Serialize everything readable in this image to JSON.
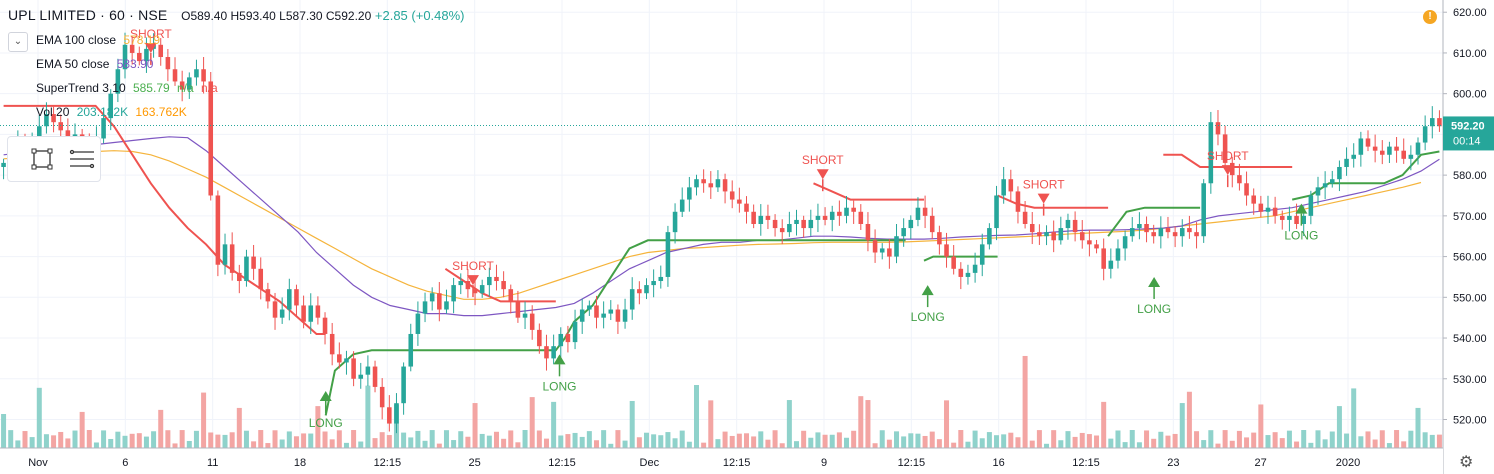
{
  "header": {
    "symbol": "UPL LIMITED · 60 · NSE",
    "ohlc": "O589.40 H593.40 L587.30 C592.20",
    "change": "+2.85 (+0.48%)"
  },
  "indicators": [
    {
      "name": "EMA 100 close",
      "values": [
        {
          "text": "578.19",
          "color": "#f5b43c"
        }
      ]
    },
    {
      "name": "EMA 50 close",
      "values": [
        {
          "text": "583.90",
          "color": "#7e57c2"
        }
      ]
    },
    {
      "name": "SuperTrend 3 10",
      "values": [
        {
          "text": "585.79",
          "color": "#4caf50"
        },
        {
          "text": "n/a",
          "color": "#4caf50"
        },
        {
          "text": "n/a",
          "color": "#ef5350"
        }
      ]
    },
    {
      "name": "Vol 20",
      "values": [
        {
          "text": "203.182K",
          "color": "#26a69a"
        },
        {
          "text": "163.762K",
          "color": "#ff9800"
        }
      ]
    }
  ],
  "icons": {
    "collapse": "chevron-down-icon",
    "rectangle_tool": "rectangle-select-icon",
    "lines_tool": "list-lines-icon",
    "alert": "alert-icon",
    "settings": "gear-icon"
  },
  "colors": {
    "up": "#26a69a",
    "down": "#ef5350",
    "ema100": "#f5b43c",
    "ema50": "#7e57c2",
    "st_long": "#43a047",
    "st_short": "#ef5350",
    "vol_up": "#8fd2cb",
    "vol_down": "#f3a5a3"
  },
  "chart_data": {
    "type": "candlestick",
    "title": "UPL LIMITED · 60 · NSE",
    "ylim": [
      513,
      623
    ],
    "y_ticks": [
      520,
      530,
      540,
      550,
      560,
      570,
      580,
      590,
      600,
      610,
      620
    ],
    "x_tick_labels": [
      "Nov",
      "6",
      "11",
      "18",
      "12:15",
      "25",
      "12:15",
      "Dec",
      "12:15",
      "9",
      "12:15",
      "16",
      "12:15",
      "23",
      "27",
      "2020"
    ],
    "last_price": "592.20",
    "countdown": "00:14",
    "candles_close": [
      583,
      584,
      588,
      587,
      589,
      592,
      595,
      593,
      591,
      589,
      590,
      588,
      586,
      589,
      594,
      600,
      606,
      612,
      610,
      608,
      611,
      612,
      609,
      606,
      603,
      601,
      604,
      606,
      603,
      575,
      558,
      563,
      556,
      554,
      560,
      557,
      552,
      549,
      545,
      547,
      552,
      548,
      544,
      548,
      545,
      541,
      536,
      534,
      535,
      530,
      531,
      533,
      528,
      523,
      519,
      524,
      533,
      541,
      546,
      549,
      551,
      547,
      549,
      553,
      554,
      552,
      551,
      553,
      555,
      554,
      552,
      549,
      545,
      546,
      542,
      538,
      535,
      538,
      541,
      539,
      544,
      547,
      548,
      545,
      546,
      547,
      544,
      547,
      552,
      551,
      553,
      554,
      555,
      566,
      571,
      574,
      577,
      579,
      578,
      577,
      579,
      576,
      574,
      573,
      571,
      568,
      570,
      569,
      567,
      566,
      568,
      569,
      567,
      569,
      570,
      569,
      571,
      570,
      572,
      571,
      568,
      564,
      561,
      562,
      560,
      565,
      567,
      569,
      572,
      570,
      566,
      563,
      560,
      557,
      555,
      556,
      558,
      563,
      567,
      575,
      579,
      576,
      571,
      568,
      566,
      565,
      566,
      564,
      567,
      569,
      566,
      564,
      563,
      562,
      557,
      559,
      562,
      565,
      567,
      568,
      566,
      565,
      567,
      566,
      565,
      567,
      566,
      565,
      578,
      593,
      590,
      583,
      580,
      578,
      575,
      573,
      571,
      572,
      570,
      569,
      570,
      568,
      570,
      575,
      577,
      578,
      579,
      582,
      584,
      585,
      589,
      587,
      586,
      585,
      587,
      586,
      584,
      585,
      588,
      592,
      594,
      592
    ],
    "ema50": [
      585,
      585.5,
      586,
      586.5,
      587,
      587.5,
      588,
      588.5,
      589,
      589.4,
      589.2,
      586,
      582,
      578,
      574,
      570,
      566,
      561,
      557,
      553,
      550,
      548,
      547,
      546,
      546,
      545.5,
      545.5,
      546,
      546.5,
      547,
      547.5,
      548.5,
      551,
      554,
      557,
      559,
      561,
      562,
      563,
      563.5,
      563.5,
      564,
      564,
      564.5,
      565,
      565,
      564.8,
      564.5,
      564.3,
      564.3,
      564.3,
      564.5,
      564.8,
      565,
      565.2,
      565.3,
      565.6,
      566,
      566.3,
      566.5,
      566.5,
      566.6,
      566.8,
      567,
      567.5,
      569,
      570,
      570.5,
      571,
      571.5,
      572,
      573,
      574,
      575,
      576,
      577.5,
      579,
      581,
      583.9
    ],
    "ema100": [
      584,
      584.3,
      584.6,
      585,
      585.4,
      585.8,
      586,
      585.8,
      585,
      583.5,
      581.5,
      579.5,
      577,
      574.5,
      572,
      569.5,
      567,
      564.5,
      562,
      559.5,
      557,
      555,
      553,
      551.5,
      550.5,
      549.5,
      549.5,
      550,
      551,
      552.5,
      554,
      555.5,
      557,
      558.5,
      560,
      561,
      561.5,
      562,
      562.2,
      562.5,
      562.8,
      563,
      563.1,
      563.2,
      563.4,
      563.5,
      563.5,
      563.5,
      563.5,
      563.6,
      563.8,
      564,
      564.2,
      564.4,
      564.6,
      564.8,
      565,
      565.3,
      565.6,
      565.8,
      566,
      566.2,
      566.5,
      567,
      567.5,
      568,
      568.5,
      569,
      569.5,
      570,
      571,
      572,
      573,
      574,
      575,
      576,
      577,
      578.19
    ],
    "supertrend_segments": [
      {
        "dir": "short",
        "x": [
          0,
          3,
          5,
          6,
          7,
          8,
          9,
          10,
          11,
          12,
          13,
          14,
          15,
          16,
          17,
          17.5
        ],
        "y": [
          597,
          597,
          597,
          592,
          585,
          578,
          572,
          567,
          563,
          558,
          555,
          552,
          549,
          545,
          541,
          541
        ]
      },
      {
        "dir": "long",
        "x": [
          17.5,
          18,
          19,
          20,
          21,
          22,
          23,
          24,
          25,
          26,
          27,
          28,
          29,
          30,
          30.5
        ],
        "y": [
          521,
          532,
          536,
          537,
          537,
          537,
          537,
          537,
          537,
          537,
          537,
          537,
          537,
          537,
          540
        ]
      },
      {
        "dir": "short",
        "x": [
          24,
          25,
          26,
          27,
          28,
          29,
          30
        ],
        "y": [
          557,
          554,
          551,
          549,
          549,
          549,
          549
        ]
      },
      {
        "dir": "long",
        "x": [
          30.5,
          31,
          32,
          33,
          34,
          35,
          36,
          37,
          38,
          39,
          40,
          41,
          42,
          43,
          44,
          45,
          46,
          47,
          48,
          49
        ],
        "y": [
          540,
          544,
          548,
          555,
          562,
          564,
          564,
          564,
          564,
          564,
          564,
          564,
          564,
          564,
          564,
          564,
          564,
          564,
          564,
          564
        ]
      },
      {
        "dir": "short",
        "x": [
          44,
          45,
          46,
          47,
          48,
          49,
          50
        ],
        "y": [
          578,
          576,
          574,
          574,
          574,
          574,
          574
        ]
      },
      {
        "dir": "long",
        "x": [
          50,
          50.5,
          51,
          52,
          53,
          54
        ],
        "y": [
          559,
          560,
          560,
          560,
          560,
          560
        ]
      },
      {
        "dir": "short",
        "x": [
          54,
          55,
          56,
          57,
          58,
          59,
          60
        ],
        "y": [
          575,
          573,
          572,
          572,
          572,
          572,
          572
        ]
      },
      {
        "dir": "long",
        "x": [
          60,
          61,
          62,
          63,
          64,
          65
        ],
        "y": [
          565,
          571,
          572,
          572,
          572,
          572
        ]
      },
      {
        "dir": "short",
        "x": [
          63,
          64,
          65,
          66,
          67,
          68,
          69,
          70
        ],
        "y": [
          585,
          585,
          582,
          582,
          582,
          582,
          582,
          582
        ]
      },
      {
        "dir": "long",
        "x": [
          70,
          71,
          72,
          73,
          74,
          75,
          76,
          77,
          78
        ],
        "y": [
          574,
          575,
          578,
          578,
          578,
          578,
          580,
          585,
          585.79
        ]
      }
    ],
    "signals": [
      {
        "type": "SHORT",
        "x": 8,
        "price": 610
      },
      {
        "type": "LONG",
        "x": 17.5,
        "price": 527
      },
      {
        "type": "SHORT",
        "x": 25.5,
        "price": 553
      },
      {
        "type": "LONG",
        "x": 30.2,
        "price": 536
      },
      {
        "type": "SHORT",
        "x": 44.5,
        "price": 579
      },
      {
        "type": "LONG",
        "x": 50.2,
        "price": 553
      },
      {
        "type": "SHORT",
        "x": 56.5,
        "price": 573
      },
      {
        "type": "LONG",
        "x": 62.5,
        "price": 555
      },
      {
        "type": "SHORT",
        "x": 66.5,
        "price": 580
      },
      {
        "type": "LONG",
        "x": 70.5,
        "price": 573
      }
    ]
  }
}
